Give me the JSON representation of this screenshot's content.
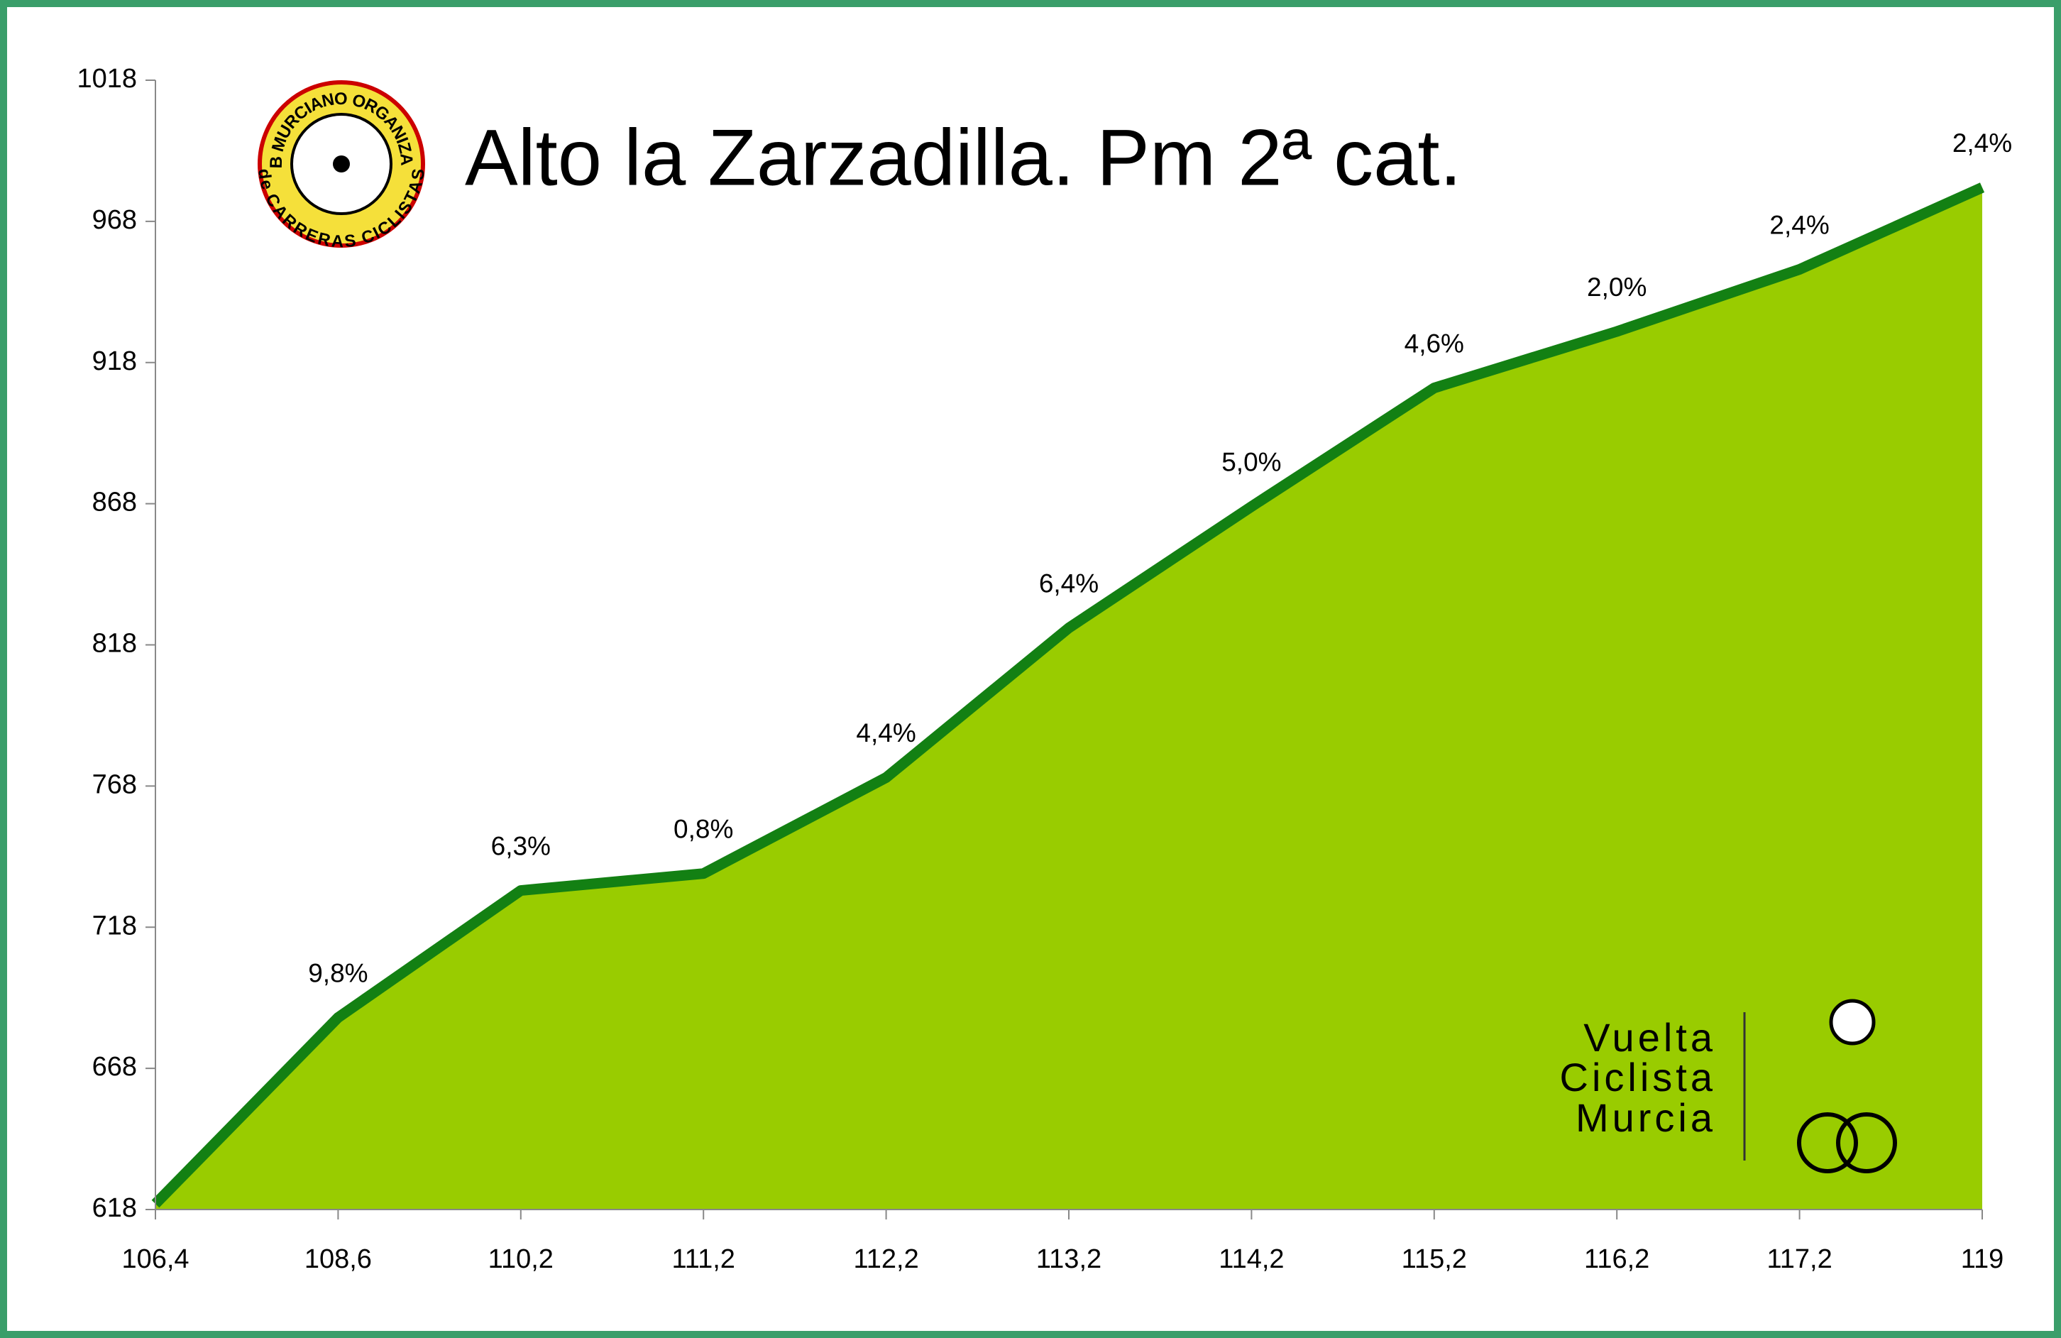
{
  "chart_data": {
    "type": "area",
    "title": "Alto la Zarzadilla. Pm 2ª cat.",
    "categories": [
      "106,4",
      "108,6",
      "110,2",
      "111,2",
      "112,2",
      "113,2",
      "114,2",
      "115,2",
      "116,2",
      "117,2",
      "119"
    ],
    "values": [
      620,
      686,
      731,
      737,
      771,
      824,
      867,
      909,
      929,
      951,
      980
    ],
    "gradient_labels": [
      null,
      "9,8%",
      "6,3%",
      "0,8%",
      "4,4%",
      "6,4%",
      "5,0%",
      "4,6%",
      "2,0%",
      "2,4%",
      "2,4%"
    ],
    "ylim": [
      618,
      1018
    ],
    "yticks": [
      618,
      668,
      718,
      768,
      818,
      868,
      918,
      968,
      1018
    ],
    "color": "#99cc00",
    "line_color": "#138013"
  },
  "logo": {
    "top": "CLUB MURCIANO ORGANIZADOR",
    "bottom": "de CARRERAS CICLISTAS"
  },
  "brand": {
    "lines": [
      "Vuelta",
      "Ciclista",
      "Murcia"
    ]
  }
}
